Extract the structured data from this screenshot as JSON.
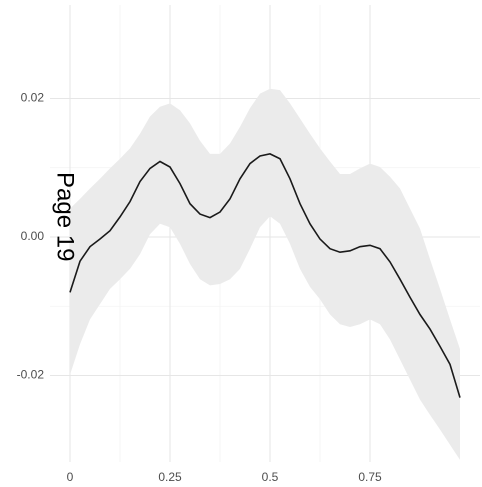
{
  "chart_data": {
    "type": "line",
    "annotation": "Page 19",
    "x": [
      0,
      0.025,
      0.05,
      0.075,
      0.1,
      0.125,
      0.15,
      0.175,
      0.2,
      0.225,
      0.25,
      0.275,
      0.3,
      0.325,
      0.35,
      0.375,
      0.4,
      0.425,
      0.45,
      0.475,
      0.5,
      0.525,
      0.55,
      0.575,
      0.6,
      0.625,
      0.65,
      0.675,
      0.7,
      0.725,
      0.75,
      0.775,
      0.8,
      0.825,
      0.85,
      0.875,
      0.9,
      0.925,
      0.95,
      0.975
    ],
    "values": [
      -0.008,
      -0.0035,
      -0.0014,
      -0.0003,
      0.0009,
      0.0029,
      0.0051,
      0.008,
      0.0099,
      0.0109,
      0.0101,
      0.0077,
      0.0048,
      0.0033,
      0.0028,
      0.0036,
      0.0055,
      0.0084,
      0.0106,
      0.0117,
      0.012,
      0.0113,
      0.0084,
      0.0048,
      0.0019,
      -0.0003,
      -0.0017,
      -0.0022,
      -0.002,
      -0.0014,
      -0.0012,
      -0.0017,
      -0.0036,
      -0.0061,
      -0.0087,
      -0.0112,
      -0.0133,
      -0.0158,
      -0.0184,
      -0.0232
    ],
    "upper": [
      0.0041,
      0.0055,
      0.007,
      0.0084,
      0.0099,
      0.0113,
      0.0128,
      0.0149,
      0.0174,
      0.0188,
      0.0193,
      0.0183,
      0.0164,
      0.0139,
      0.012,
      0.012,
      0.0135,
      0.0159,
      0.0186,
      0.0207,
      0.0214,
      0.0212,
      0.0193,
      0.0171,
      0.0149,
      0.0128,
      0.0109,
      0.0091,
      0.0091,
      0.0099,
      0.0106,
      0.0101,
      0.0087,
      0.007,
      0.0041,
      0.0012,
      -0.0032,
      -0.0075,
      -0.0119,
      -0.0162
    ],
    "lower": [
      -0.0199,
      -0.0155,
      -0.0119,
      -0.0097,
      -0.0075,
      -0.0061,
      -0.0046,
      -0.0025,
      0.0004,
      0.0019,
      0.0014,
      -0.001,
      -0.0039,
      -0.0061,
      -0.007,
      -0.0068,
      -0.0061,
      -0.0046,
      -0.0017,
      0.0014,
      0.003,
      0.0019,
      -0.001,
      -0.0046,
      -0.0072,
      -0.009,
      -0.0112,
      -0.0126,
      -0.013,
      -0.0126,
      -0.0119,
      -0.0126,
      -0.0148,
      -0.0177,
      -0.0206,
      -0.0235,
      -0.0257,
      -0.0278,
      -0.03,
      -0.0322
    ],
    "color": "#1a1a1a",
    "band_color": "#ebebeb",
    "xlim": [
      -0.05,
      1.025
    ],
    "ylim": [
      -0.0325,
      0.0335
    ],
    "xticks": [
      0,
      0.25,
      0.5,
      0.75
    ],
    "yticks": [
      {
        "value": -0.02,
        "label": "-0.02"
      },
      {
        "value": 0,
        "label": "0.00"
      },
      {
        "value": 0.02,
        "label": "0.02"
      }
    ],
    "grid": true
  }
}
